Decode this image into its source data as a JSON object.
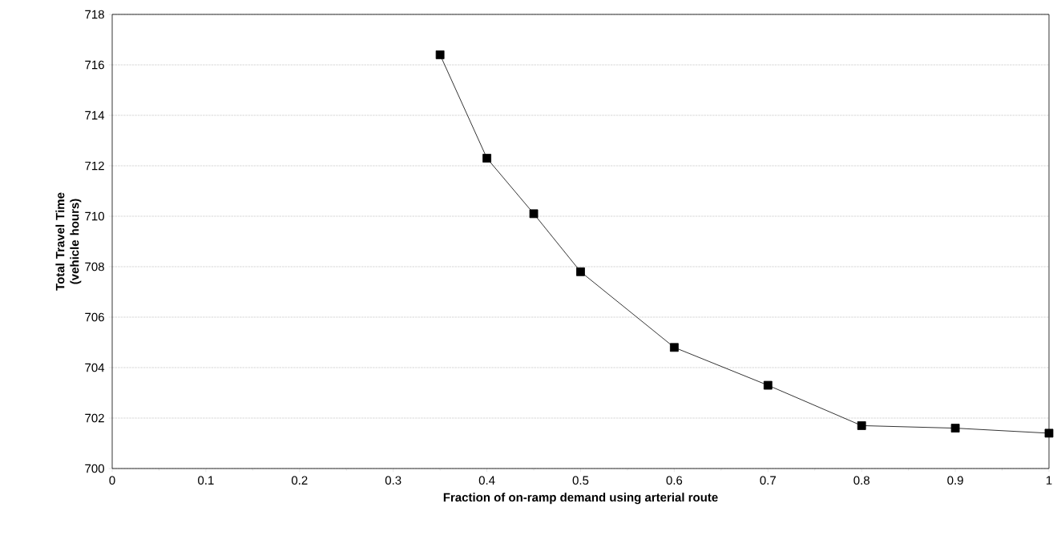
{
  "chart_data": {
    "type": "line",
    "xlabel": "Fraction of on-ramp demand using arterial route",
    "ylabel": "Total Travel Time (vehicle hours)",
    "x": [
      0.35,
      0.4,
      0.45,
      0.5,
      0.6,
      0.7,
      0.8,
      0.9,
      1
    ],
    "series": [
      {
        "color": "#000000",
        "values": [
          716.4,
          712.3,
          710.1,
          707.8,
          704.8,
          703.3,
          701.7,
          701.6,
          701.4
        ]
      }
    ],
    "xlim": [
      0,
      1
    ],
    "xticks": [
      0,
      0.1,
      0.2,
      0.3,
      0.4,
      0.5,
      0.6,
      0.7,
      0.8,
      0.9,
      1
    ],
    "ylim": [
      700,
      718
    ],
    "yticks": [
      700,
      702,
      704,
      706,
      708,
      710,
      712,
      714,
      716,
      718
    ],
    "grid": "y",
    "marker": "square",
    "line_style": "solid"
  }
}
